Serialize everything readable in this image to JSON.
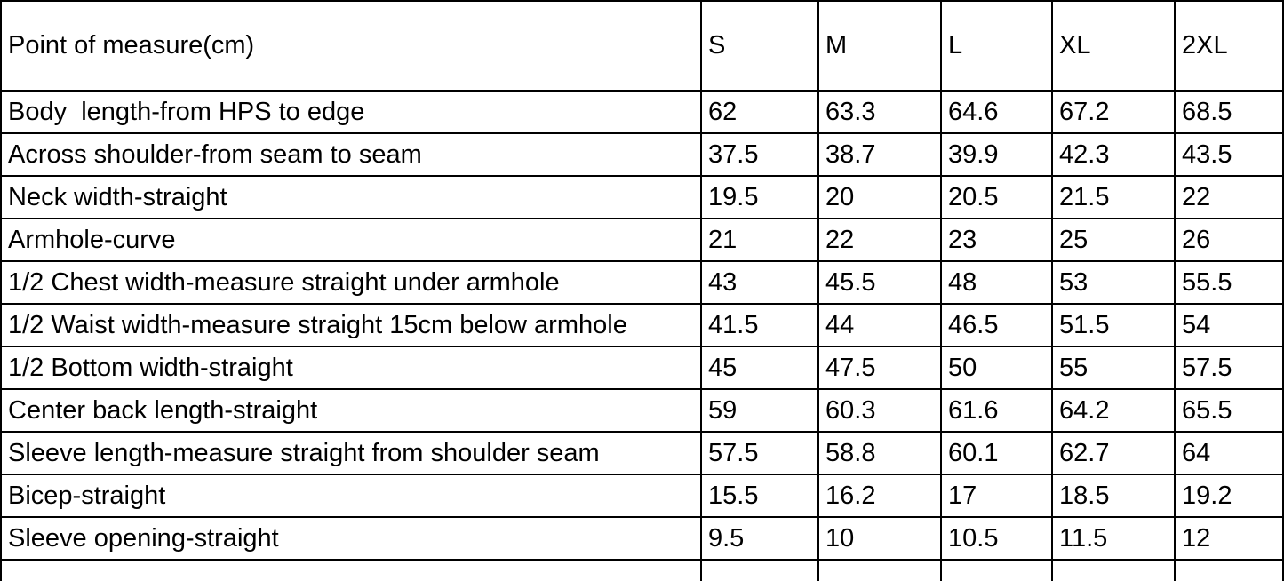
{
  "chart_data": {
    "type": "table",
    "columns": [
      "Point of measure(cm)",
      "S",
      "M",
      "L",
      "XL",
      "2XL"
    ],
    "rows": [
      [
        "Body  length-from HPS to edge",
        "62",
        "63.3",
        "64.6",
        "67.2",
        "68.5"
      ],
      [
        "Across shoulder-from seam to seam",
        "37.5",
        "38.7",
        "39.9",
        "42.3",
        "43.5"
      ],
      [
        "Neck width-straight",
        "19.5",
        "20",
        "20.5",
        "21.5",
        "22"
      ],
      [
        "Armhole-curve",
        "21",
        "22",
        "23",
        "25",
        "26"
      ],
      [
        "1/2 Chest width-measure straight under armhole",
        "43",
        "45.5",
        "48",
        "53",
        "55.5"
      ],
      [
        "1/2 Waist width-measure straight 15cm below armhole",
        "41.5",
        "44",
        "46.5",
        "51.5",
        "54"
      ],
      [
        "1/2 Bottom width-straight",
        "45",
        "47.5",
        "50",
        "55",
        "57.5"
      ],
      [
        "Center back length-straight",
        "59",
        "60.3",
        "61.6",
        "64.2",
        "65.5"
      ],
      [
        "Sleeve length-measure straight from shoulder seam",
        "57.5",
        "58.8",
        "60.1",
        "62.7",
        "64"
      ],
      [
        "Bicep-straight",
        "15.5",
        "16.2",
        "17",
        "18.5",
        "19.2"
      ],
      [
        "Sleeve opening-straight",
        "9.5",
        "10",
        "10.5",
        "11.5",
        "12"
      ]
    ],
    "layout": {
      "grid": "on",
      "header_alignment": "label centered, sizes left",
      "units": "cm"
    }
  },
  "colors": {
    "background": "#ffffff",
    "border": "#000000",
    "text": "#000000"
  }
}
